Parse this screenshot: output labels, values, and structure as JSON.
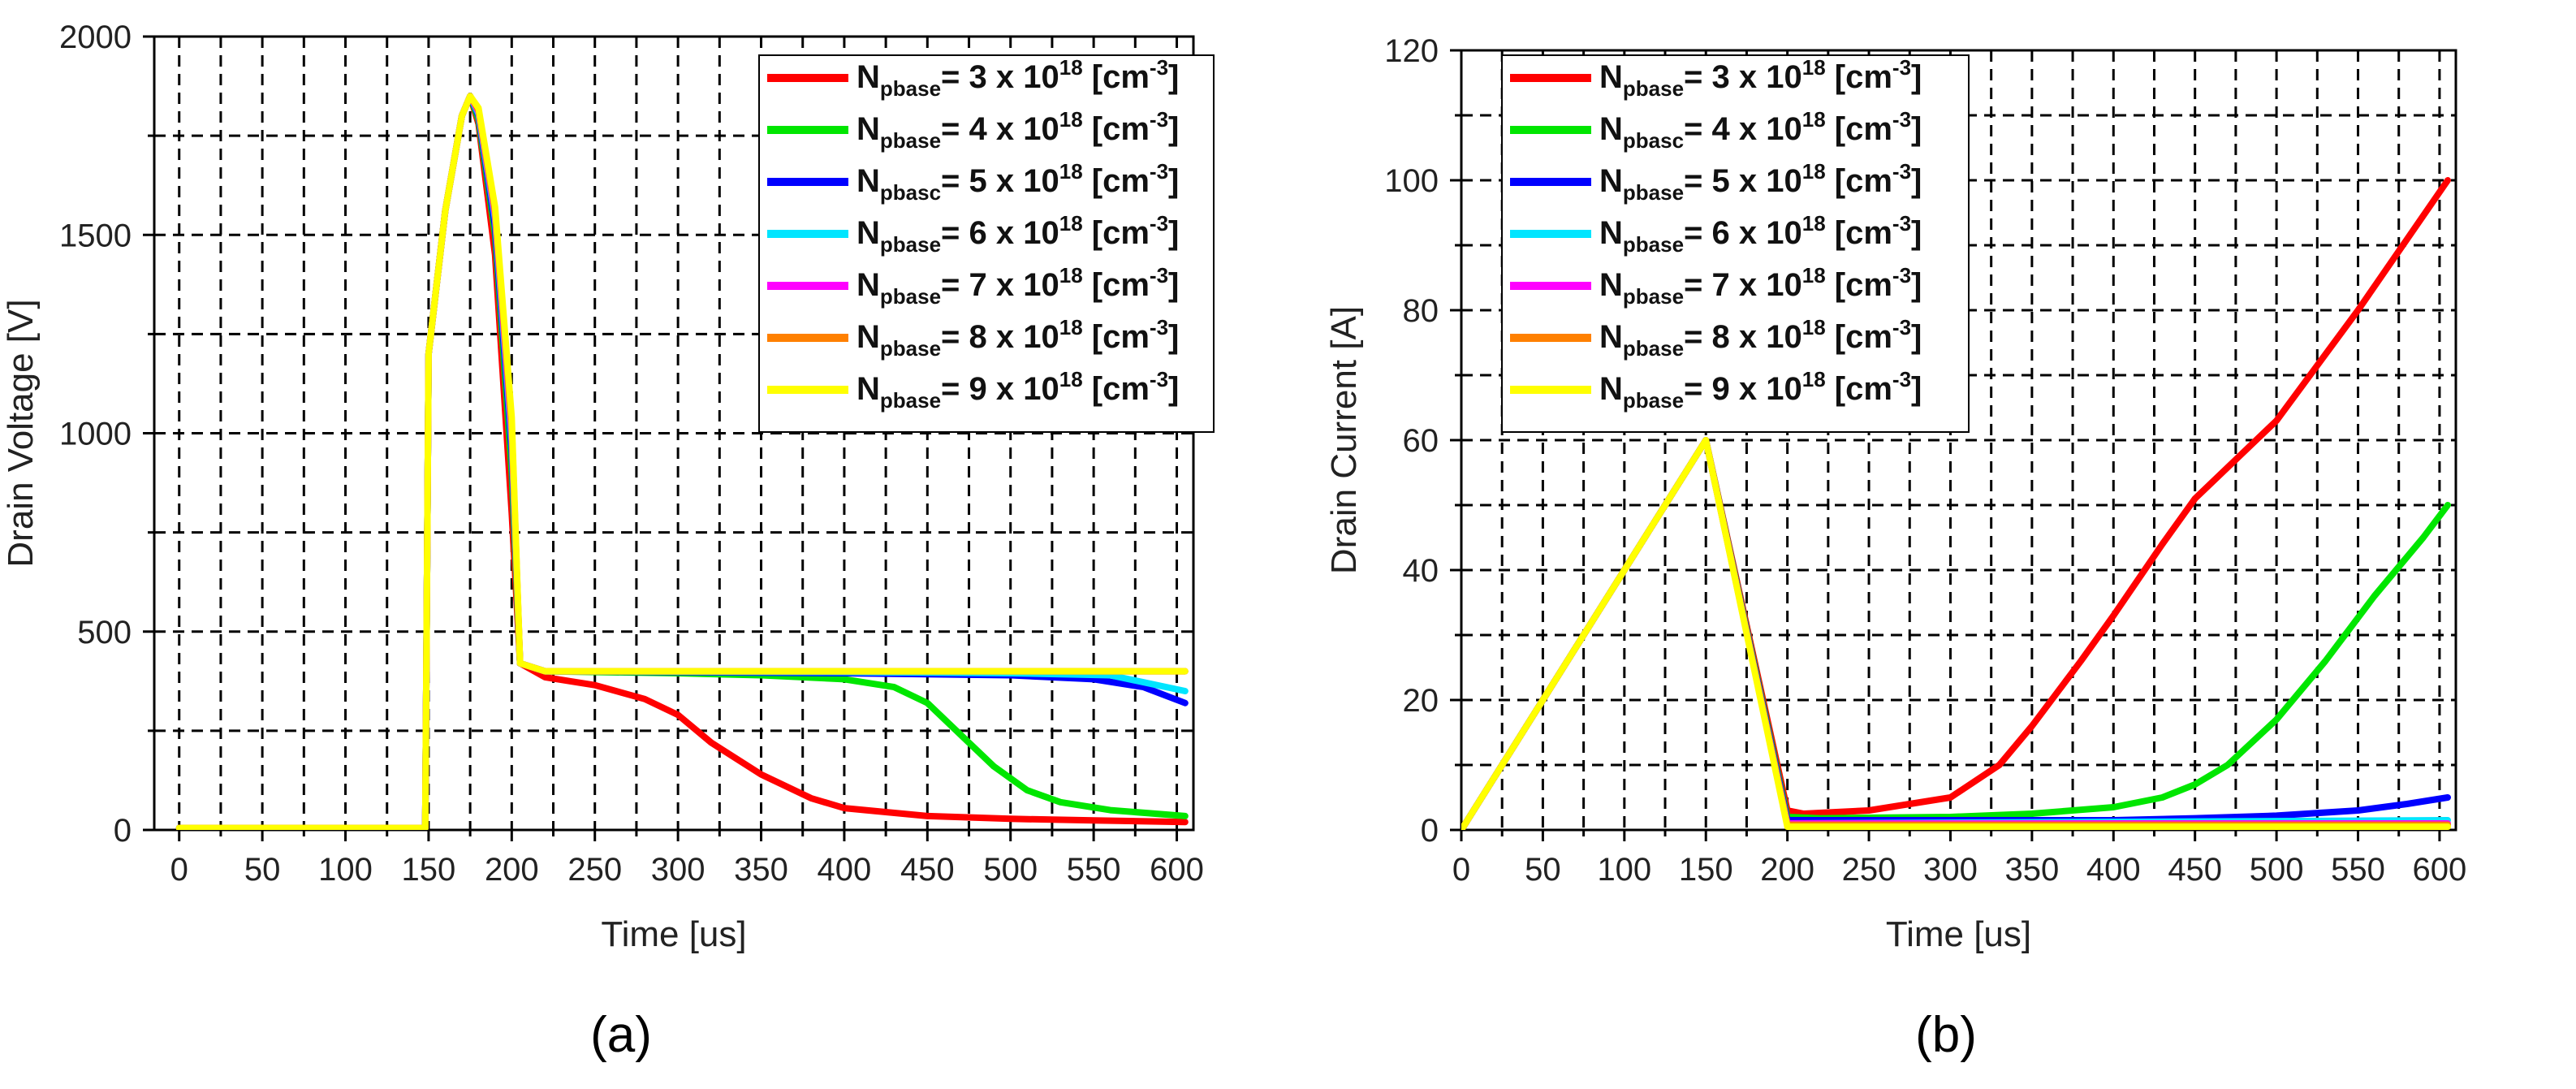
{
  "chart_data": [
    {
      "type": "line",
      "panel_label": "(a)",
      "xlabel": "Time [us]",
      "ylabel": "Drain Voltage [V]",
      "xlim": [
        -15,
        610
      ],
      "ylim": [
        0,
        2000
      ],
      "x_major_ticks": [
        0,
        50,
        100,
        150,
        200,
        250,
        300,
        350,
        400,
        450,
        500,
        550,
        600
      ],
      "x_tick_labels": [
        "0",
        "50",
        "100",
        "150",
        "200",
        "250",
        "300",
        "350",
        "400",
        "450",
        "500",
        "550",
        "600"
      ],
      "y_major_ticks": [
        0,
        500,
        1000,
        1500,
        2000
      ],
      "y_tick_labels": [
        "0",
        "500",
        "1000",
        "1500",
        "2000"
      ],
      "x_minor_ticks": [
        25,
        75,
        125,
        175,
        225,
        275,
        325,
        375,
        425,
        475,
        525,
        575
      ],
      "y_minor_ticks": [
        250,
        750,
        1250,
        1750
      ],
      "grid": true,
      "legend_position": "top-right",
      "series": [
        {
          "name_main": "N",
          "name_sub": "pbase",
          "name_mid": "= 3 x 10",
          "name_sup": "18",
          "name_tail": " [cm",
          "name_unit_sup": "-3",
          "name_end": "]",
          "color": "#ff0000",
          "points": [
            [
              0,
              5
            ],
            [
              148,
              5
            ],
            [
              150,
              1200
            ],
            [
              160,
              1560
            ],
            [
              170,
              1800
            ],
            [
              175,
              1850
            ],
            [
              180,
              1780
            ],
            [
              190,
              1450
            ],
            [
              200,
              800
            ],
            [
              205,
              420
            ],
            [
              220,
              385
            ],
            [
              250,
              365
            ],
            [
              280,
              330
            ],
            [
              300,
              290
            ],
            [
              320,
              220
            ],
            [
              350,
              140
            ],
            [
              380,
              80
            ],
            [
              400,
              55
            ],
            [
              450,
              35
            ],
            [
              500,
              28
            ],
            [
              550,
              24
            ],
            [
              605,
              20
            ]
          ]
        },
        {
          "name_main": "N",
          "name_sub": "pbase",
          "name_mid": "= 4 x 10",
          "name_sup": "18",
          "name_tail": " [cm",
          "name_unit_sup": "-3",
          "name_end": "]",
          "color": "#00e600",
          "points": [
            [
              0,
              5
            ],
            [
              148,
              5
            ],
            [
              150,
              1200
            ],
            [
              160,
              1560
            ],
            [
              170,
              1800
            ],
            [
              175,
              1850
            ],
            [
              180,
              1790
            ],
            [
              190,
              1500
            ],
            [
              200,
              900
            ],
            [
              205,
              420
            ],
            [
              220,
              400
            ],
            [
              300,
              395
            ],
            [
              350,
              390
            ],
            [
              400,
              380
            ],
            [
              430,
              360
            ],
            [
              450,
              320
            ],
            [
              470,
              240
            ],
            [
              490,
              160
            ],
            [
              510,
              100
            ],
            [
              530,
              70
            ],
            [
              560,
              50
            ],
            [
              605,
              35
            ]
          ]
        },
        {
          "name_main": "N",
          "name_sub": "pbasc",
          "name_mid": "= 5 x 10",
          "name_sup": "18",
          "name_tail": " [cm",
          "name_unit_sup": "-3",
          "name_end": "]",
          "color": "#0000ff",
          "points": [
            [
              0,
              5
            ],
            [
              148,
              5
            ],
            [
              150,
              1200
            ],
            [
              160,
              1560
            ],
            [
              170,
              1800
            ],
            [
              175,
              1850
            ],
            [
              180,
              1800
            ],
            [
              190,
              1520
            ],
            [
              200,
              950
            ],
            [
              205,
              420
            ],
            [
              220,
              400
            ],
            [
              300,
              398
            ],
            [
              400,
              395
            ],
            [
              500,
              390
            ],
            [
              550,
              380
            ],
            [
              580,
              360
            ],
            [
              605,
              320
            ]
          ]
        },
        {
          "name_main": "N",
          "name_sub": "pbase",
          "name_mid": "= 6 x 10",
          "name_sup": "18",
          "name_tail": " [cm",
          "name_unit_sup": "-3",
          "name_end": "]",
          "color": "#00e5ff",
          "points": [
            [
              0,
              5
            ],
            [
              148,
              5
            ],
            [
              150,
              1200
            ],
            [
              160,
              1560
            ],
            [
              170,
              1800
            ],
            [
              175,
              1850
            ],
            [
              180,
              1805
            ],
            [
              190,
              1540
            ],
            [
              200,
              980
            ],
            [
              205,
              420
            ],
            [
              220,
              400
            ],
            [
              400,
              398
            ],
            [
              500,
              395
            ],
            [
              560,
              390
            ],
            [
              605,
              350
            ]
          ]
        },
        {
          "name_main": "N",
          "name_sub": "pbase",
          "name_mid": "= 7 x 10",
          "name_sup": "18",
          "name_tail": " [cm",
          "name_unit_sup": "-3",
          "name_end": "]",
          "color": "#ff00ff",
          "points": [
            [
              0,
              5
            ],
            [
              148,
              5
            ],
            [
              150,
              1200
            ],
            [
              160,
              1560
            ],
            [
              170,
              1800
            ],
            [
              175,
              1850
            ],
            [
              180,
              1810
            ],
            [
              190,
              1550
            ],
            [
              200,
              1000
            ],
            [
              205,
              420
            ],
            [
              220,
              400
            ],
            [
              605,
              400
            ]
          ]
        },
        {
          "name_main": "N",
          "name_sub": "pbase",
          "name_mid": "= 8 x 10",
          "name_sup": "18",
          "name_tail": " [cm",
          "name_unit_sup": "-3",
          "name_end": "]",
          "color": "#ff8000",
          "points": [
            [
              0,
              5
            ],
            [
              148,
              5
            ],
            [
              150,
              1200
            ],
            [
              160,
              1560
            ],
            [
              170,
              1800
            ],
            [
              175,
              1850
            ],
            [
              180,
              1815
            ],
            [
              190,
              1560
            ],
            [
              200,
              1020
            ],
            [
              205,
              420
            ],
            [
              220,
              400
            ],
            [
              605,
              400
            ]
          ]
        },
        {
          "name_main": "N",
          "name_sub": "pbase",
          "name_mid": "= 9 x 10",
          "name_sup": "18",
          "name_tail": " [cm",
          "name_unit_sup": "-3",
          "name_end": "]",
          "color": "#ffff00",
          "points": [
            [
              0,
              5
            ],
            [
              148,
              5
            ],
            [
              150,
              1200
            ],
            [
              160,
              1560
            ],
            [
              170,
              1800
            ],
            [
              175,
              1850
            ],
            [
              180,
              1820
            ],
            [
              190,
              1570
            ],
            [
              200,
              1040
            ],
            [
              205,
              420
            ],
            [
              220,
              400
            ],
            [
              605,
              400
            ]
          ]
        }
      ]
    },
    {
      "type": "line",
      "panel_label": "(b)",
      "xlabel": "Time [us]",
      "ylabel": "Drain Current [A]",
      "xlim": [
        0,
        610
      ],
      "ylim": [
        0,
        120
      ],
      "x_major_ticks": [
        0,
        50,
        100,
        150,
        200,
        250,
        300,
        350,
        400,
        450,
        500,
        550,
        600
      ],
      "x_tick_labels": [
        "0",
        "50",
        "100",
        "150",
        "200",
        "250",
        "300",
        "350",
        "400",
        "450",
        "500",
        "550",
        "600"
      ],
      "y_major_ticks": [
        0,
        20,
        40,
        60,
        80,
        100,
        120
      ],
      "y_tick_labels": [
        "0",
        "20",
        "40",
        "60",
        "80",
        "100",
        "120"
      ],
      "x_minor_ticks": [
        25,
        75,
        125,
        175,
        225,
        275,
        325,
        375,
        425,
        475,
        525,
        575
      ],
      "y_minor_ticks": [
        10,
        30,
        50,
        70,
        90,
        110
      ],
      "grid": true,
      "legend_position": "top-left",
      "series": [
        {
          "name_main": "N",
          "name_sub": "pbase",
          "name_mid": "= 3 x 10",
          "name_sup": "18",
          "name_tail": " [cm",
          "name_unit_sup": "-3",
          "name_end": "]",
          "color": "#ff0000",
          "points": [
            [
              0,
              0
            ],
            [
              150,
              60
            ],
            [
              200,
              3
            ],
            [
              210,
              2.5
            ],
            [
              250,
              3
            ],
            [
              300,
              5
            ],
            [
              330,
              10
            ],
            [
              350,
              16
            ],
            [
              380,
              26
            ],
            [
              400,
              33
            ],
            [
              430,
              44
            ],
            [
              450,
              51
            ],
            [
              500,
              63
            ],
            [
              550,
              80
            ],
            [
              605,
              100
            ]
          ]
        },
        {
          "name_main": "N",
          "name_sub": "pbasc",
          "name_mid": "= 4 x 10",
          "name_sup": "18",
          "name_tail": " [cm",
          "name_unit_sup": "-3",
          "name_end": "]",
          "color": "#00e600",
          "points": [
            [
              0,
              0
            ],
            [
              150,
              60
            ],
            [
              200,
              2
            ],
            [
              220,
              1.8
            ],
            [
              300,
              2
            ],
            [
              350,
              2.5
            ],
            [
              400,
              3.5
            ],
            [
              430,
              5
            ],
            [
              450,
              7
            ],
            [
              470,
              10
            ],
            [
              500,
              17
            ],
            [
              530,
              26
            ],
            [
              560,
              36
            ],
            [
              590,
              45
            ],
            [
              605,
              50
            ]
          ]
        },
        {
          "name_main": "N",
          "name_sub": "pbase",
          "name_mid": "= 5 x 10",
          "name_sup": "18",
          "name_tail": " [cm",
          "name_unit_sup": "-3",
          "name_end": "]",
          "color": "#0000ff",
          "points": [
            [
              0,
              0
            ],
            [
              150,
              60
            ],
            [
              200,
              1.5
            ],
            [
              300,
              1.5
            ],
            [
              400,
              1.5
            ],
            [
              450,
              1.8
            ],
            [
              500,
              2.2
            ],
            [
              550,
              3
            ],
            [
              580,
              4
            ],
            [
              605,
              5
            ]
          ]
        },
        {
          "name_main": "N",
          "name_sub": "pbase",
          "name_mid": "= 6 x 10",
          "name_sup": "18",
          "name_tail": " [cm",
          "name_unit_sup": "-3",
          "name_end": "]",
          "color": "#00e5ff",
          "points": [
            [
              0,
              0
            ],
            [
              150,
              60
            ],
            [
              200,
              1
            ],
            [
              605,
              1.5
            ]
          ]
        },
        {
          "name_main": "N",
          "name_sub": "pbase",
          "name_mid": "= 7 x 10",
          "name_sup": "18",
          "name_tail": " [cm",
          "name_unit_sup": "-3",
          "name_end": "]",
          "color": "#ff00ff",
          "points": [
            [
              0,
              0
            ],
            [
              150,
              60
            ],
            [
              200,
              1
            ],
            [
              605,
              1
            ]
          ]
        },
        {
          "name_main": "N",
          "name_sub": "pbase",
          "name_mid": "= 8 x 10",
          "name_sup": "18",
          "name_tail": " [cm",
          "name_unit_sup": "-3",
          "name_end": "]",
          "color": "#ff8000",
          "points": [
            [
              0,
              0
            ],
            [
              150,
              60
            ],
            [
              200,
              0.8
            ],
            [
              605,
              0.8
            ]
          ]
        },
        {
          "name_main": "N",
          "name_sub": "pbase",
          "name_mid": "= 9 x 10",
          "name_sup": "18",
          "name_tail": " [cm",
          "name_unit_sup": "-3",
          "name_end": "]",
          "color": "#ffff00",
          "points": [
            [
              0,
              0
            ],
            [
              150,
              60
            ],
            [
              200,
              0.5
            ],
            [
              605,
              0.5
            ]
          ]
        }
      ]
    }
  ]
}
